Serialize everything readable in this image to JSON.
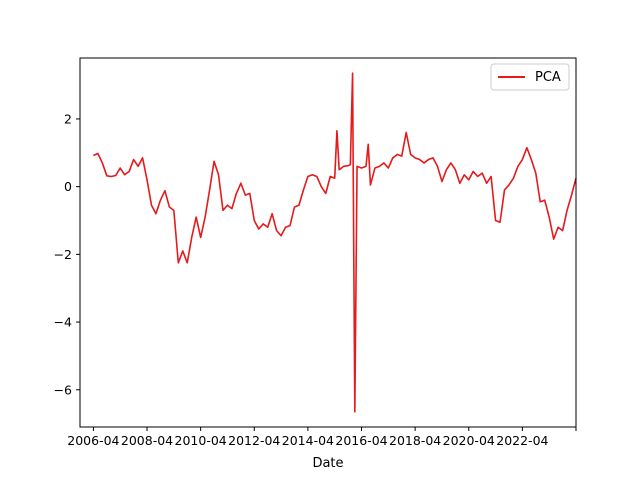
{
  "chart_data": {
    "type": "line",
    "title": "",
    "xlabel": "Date",
    "ylabel": "",
    "grid": false,
    "legend_placement": "top-right",
    "x_ticks": [
      "2006-04",
      "2008-04",
      "2010-04",
      "2012-04",
      "2014-04",
      "2016-04",
      "2018-04",
      "2020-04",
      "2022-04",
      ""
    ],
    "y_ticks": [
      -6,
      -4,
      -2,
      0,
      2
    ],
    "xlim": [
      "2005-10",
      "2024-04"
    ],
    "ylim": [
      -7.1,
      3.8
    ],
    "series": [
      {
        "name": "PCA",
        "color": "#e41a1c",
        "points": [
          [
            "2006-04",
            0.92
          ],
          [
            "2006-06",
            0.98
          ],
          [
            "2006-08",
            0.7
          ],
          [
            "2006-10",
            0.32
          ],
          [
            "2006-12",
            0.3
          ],
          [
            "2007-02",
            0.33
          ],
          [
            "2007-04",
            0.55
          ],
          [
            "2007-06",
            0.35
          ],
          [
            "2007-08",
            0.45
          ],
          [
            "2007-10",
            0.8
          ],
          [
            "2007-12",
            0.6
          ],
          [
            "2008-02",
            0.85
          ],
          [
            "2008-04",
            0.2
          ],
          [
            "2008-06",
            -0.55
          ],
          [
            "2008-08",
            -0.8
          ],
          [
            "2008-10",
            -0.4
          ],
          [
            "2008-12",
            -0.12
          ],
          [
            "2009-02",
            -0.6
          ],
          [
            "2009-04",
            -0.7
          ],
          [
            "2009-06",
            -2.25
          ],
          [
            "2009-08",
            -1.9
          ],
          [
            "2009-10",
            -2.25
          ],
          [
            "2009-12",
            -1.5
          ],
          [
            "2010-02",
            -0.9
          ],
          [
            "2010-04",
            -1.5
          ],
          [
            "2010-06",
            -0.9
          ],
          [
            "2010-08",
            -0.1
          ],
          [
            "2010-10",
            0.75
          ],
          [
            "2010-12",
            0.35
          ],
          [
            "2011-02",
            -0.7
          ],
          [
            "2011-04",
            -0.55
          ],
          [
            "2011-06",
            -0.65
          ],
          [
            "2011-08",
            -0.2
          ],
          [
            "2011-10",
            0.1
          ],
          [
            "2011-12",
            -0.25
          ],
          [
            "2012-02",
            -0.2
          ],
          [
            "2012-04",
            -1.0
          ],
          [
            "2012-06",
            -1.25
          ],
          [
            "2012-08",
            -1.1
          ],
          [
            "2012-10",
            -1.2
          ],
          [
            "2012-12",
            -0.8
          ],
          [
            "2013-02",
            -1.3
          ],
          [
            "2013-04",
            -1.45
          ],
          [
            "2013-06",
            -1.2
          ],
          [
            "2013-08",
            -1.15
          ],
          [
            "2013-10",
            -0.6
          ],
          [
            "2013-12",
            -0.55
          ],
          [
            "2014-02",
            -0.1
          ],
          [
            "2014-04",
            0.3
          ],
          [
            "2014-06",
            0.35
          ],
          [
            "2014-08",
            0.3
          ],
          [
            "2014-10",
            0.0
          ],
          [
            "2014-12",
            -0.2
          ],
          [
            "2015-02",
            0.3
          ],
          [
            "2015-04",
            0.25
          ],
          [
            "2015-05",
            1.65
          ],
          [
            "2015-06",
            0.5
          ],
          [
            "2015-08",
            0.6
          ],
          [
            "2015-10",
            0.62
          ],
          [
            "2015-11",
            0.65
          ],
          [
            "2015-12",
            3.35
          ],
          [
            "2016-01",
            -6.65
          ],
          [
            "2016-02",
            0.6
          ],
          [
            "2016-04",
            0.55
          ],
          [
            "2016-06",
            0.6
          ],
          [
            "2016-07",
            1.25
          ],
          [
            "2016-08",
            0.05
          ],
          [
            "2016-10",
            0.55
          ],
          [
            "2016-12",
            0.6
          ],
          [
            "2017-02",
            0.7
          ],
          [
            "2017-04",
            0.55
          ],
          [
            "2017-06",
            0.85
          ],
          [
            "2017-08",
            0.95
          ],
          [
            "2017-10",
            0.9
          ],
          [
            "2017-12",
            1.6
          ],
          [
            "2018-02",
            0.95
          ],
          [
            "2018-04",
            0.85
          ],
          [
            "2018-06",
            0.8
          ],
          [
            "2018-08",
            0.7
          ],
          [
            "2018-10",
            0.8
          ],
          [
            "2018-12",
            0.85
          ],
          [
            "2019-02",
            0.6
          ],
          [
            "2019-04",
            0.15
          ],
          [
            "2019-06",
            0.5
          ],
          [
            "2019-08",
            0.7
          ],
          [
            "2019-10",
            0.5
          ],
          [
            "2019-12",
            0.1
          ],
          [
            "2020-02",
            0.35
          ],
          [
            "2020-04",
            0.2
          ],
          [
            "2020-06",
            0.45
          ],
          [
            "2020-08",
            0.3
          ],
          [
            "2020-10",
            0.4
          ],
          [
            "2020-12",
            0.1
          ],
          [
            "2021-02",
            0.3
          ],
          [
            "2021-04",
            -1.0
          ],
          [
            "2021-06",
            -1.05
          ],
          [
            "2021-08",
            -0.1
          ],
          [
            "2021-10",
            0.05
          ],
          [
            "2021-12",
            0.25
          ],
          [
            "2022-02",
            0.6
          ],
          [
            "2022-04",
            0.8
          ],
          [
            "2022-06",
            1.15
          ],
          [
            "2022-08",
            0.8
          ],
          [
            "2022-10",
            0.4
          ],
          [
            "2022-12",
            -0.45
          ],
          [
            "2023-02",
            -0.4
          ],
          [
            "2023-04",
            -0.9
          ],
          [
            "2023-06",
            -1.55
          ],
          [
            "2023-08",
            -1.2
          ],
          [
            "2023-10",
            -1.3
          ],
          [
            "2023-12",
            -0.7
          ],
          [
            "2024-02",
            -0.25
          ],
          [
            "2024-04",
            0.25
          ]
        ]
      }
    ]
  }
}
